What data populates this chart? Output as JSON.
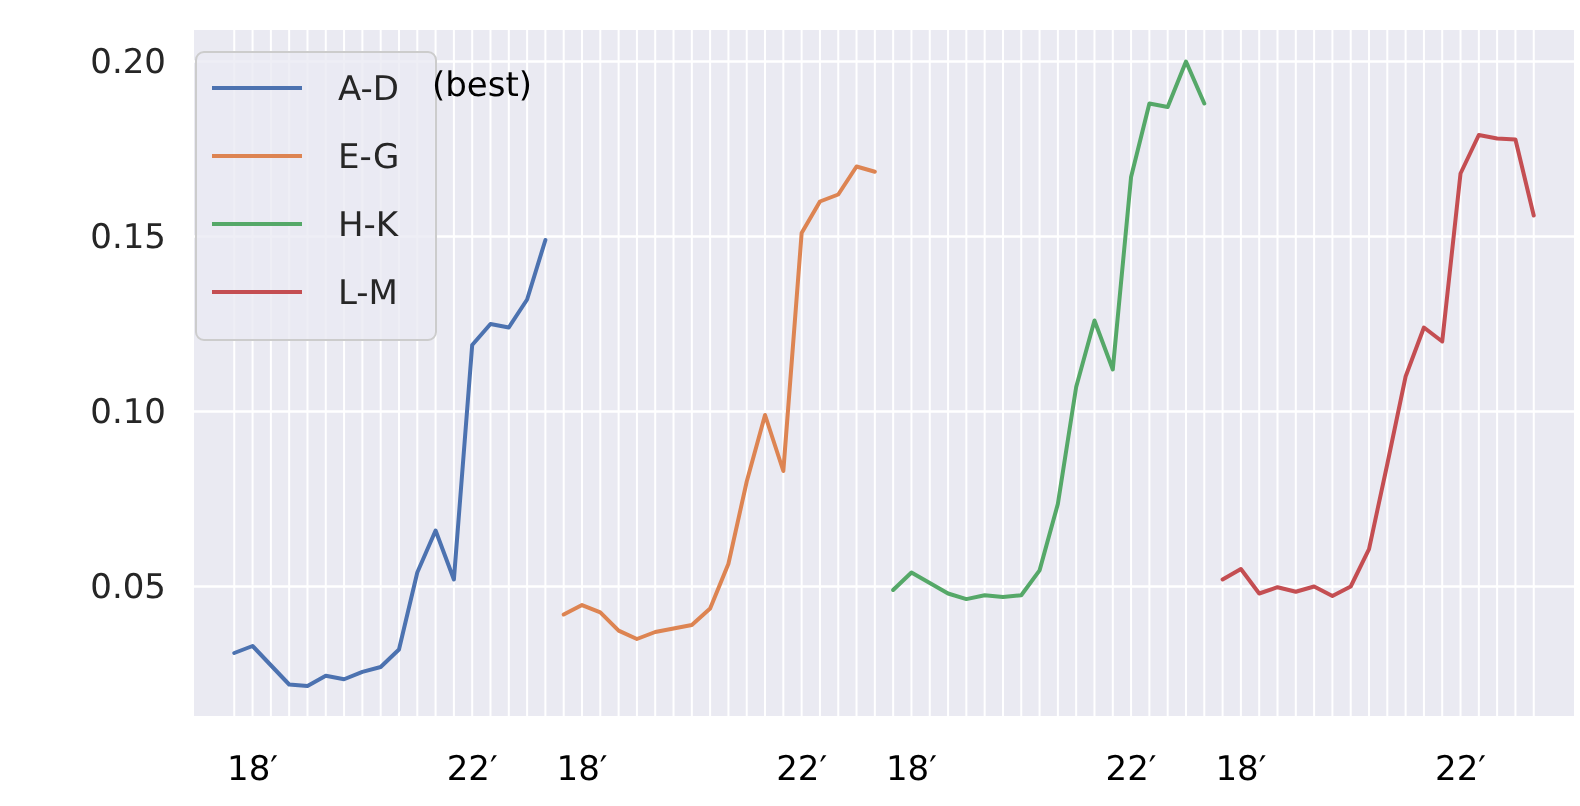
{
  "chart_data": {
    "type": "line",
    "annotations": [
      "(best)"
    ],
    "categories": [
      null,
      "18′",
      null,
      null,
      null,
      null,
      null,
      null,
      null,
      null,
      null,
      null,
      null,
      "22′",
      null,
      null,
      null,
      null,
      null,
      "18′",
      null,
      null,
      null,
      null,
      null,
      null,
      null,
      null,
      null,
      null,
      null,
      "22′",
      null,
      null,
      null,
      null,
      null,
      "18′",
      null,
      null,
      null,
      null,
      null,
      null,
      null,
      null,
      null,
      null,
      null,
      "22′",
      null,
      null,
      null,
      null,
      null,
      "18′",
      null,
      null,
      null,
      null,
      null,
      null,
      null,
      null,
      null,
      null,
      null,
      "22′",
      null,
      null,
      null,
      null
    ],
    "ylim": [
      0.013,
      0.209
    ],
    "yticks": [
      0.05,
      {
        "value": 0.1,
        "label": "0.10"
      },
      0.15,
      {
        "value": 0.2,
        "label": "0.20"
      }
    ],
    "grid": true,
    "legend": "top left",
    "series": [
      {
        "name": "A-D",
        "color": "#4c72b0",
        "values": [
          0.031,
          0.033,
          0.0275,
          0.022,
          0.0216,
          0.0245,
          0.0235,
          0.0256,
          0.027,
          0.032,
          0.054,
          0.066,
          0.052,
          0.119,
          0.125,
          0.124,
          0.132,
          0.149,
          null,
          null,
          null,
          null,
          null,
          null,
          null,
          null,
          null,
          null,
          null,
          null,
          null,
          null,
          null,
          null,
          null,
          null,
          null,
          null,
          null,
          null,
          null,
          null,
          null,
          null,
          null,
          null,
          null,
          null,
          null,
          null,
          null,
          null,
          null,
          null,
          null,
          null,
          null,
          null,
          null,
          null,
          null,
          null,
          null,
          null,
          null,
          null,
          null,
          null,
          null,
          null,
          null,
          null
        ]
      },
      {
        "name": "E-G",
        "color": "#dd8452",
        "values": [
          null,
          null,
          null,
          null,
          null,
          null,
          null,
          null,
          null,
          null,
          null,
          null,
          null,
          null,
          null,
          null,
          null,
          null,
          0.042,
          0.0447,
          0.0426,
          0.0374,
          0.035,
          0.037,
          0.038,
          0.039,
          0.0437,
          0.0565,
          0.08,
          0.099,
          0.083,
          0.151,
          0.16,
          0.162,
          0.17,
          0.1685,
          null,
          null,
          null,
          null,
          null,
          null,
          null,
          null,
          null,
          null,
          null,
          null,
          null,
          null,
          null,
          null,
          null,
          null,
          null,
          null,
          null,
          null,
          null,
          null,
          null,
          null,
          null,
          null,
          null,
          null,
          null,
          null,
          null,
          null,
          null,
          null
        ]
      },
      {
        "name": "H-K",
        "color": "#55a868",
        "values": [
          null,
          null,
          null,
          null,
          null,
          null,
          null,
          null,
          null,
          null,
          null,
          null,
          null,
          null,
          null,
          null,
          null,
          null,
          null,
          null,
          null,
          null,
          null,
          null,
          null,
          null,
          null,
          null,
          null,
          null,
          null,
          null,
          null,
          null,
          null,
          null,
          0.049,
          0.054,
          0.051,
          0.048,
          0.0464,
          0.0475,
          0.047,
          0.0475,
          0.0546,
          0.0736,
          0.107,
          0.126,
          0.112,
          0.167,
          0.188,
          0.187,
          0.2,
          0.188,
          null,
          null,
          null,
          null,
          null,
          null,
          null,
          null,
          null,
          null,
          null,
          null,
          null,
          null,
          null,
          null,
          null,
          null
        ]
      },
      {
        "name": "L-M",
        "color": "#c44e52",
        "values": [
          null,
          null,
          null,
          null,
          null,
          null,
          null,
          null,
          null,
          null,
          null,
          null,
          null,
          null,
          null,
          null,
          null,
          null,
          null,
          null,
          null,
          null,
          null,
          null,
          null,
          null,
          null,
          null,
          null,
          null,
          null,
          null,
          null,
          null,
          null,
          null,
          null,
          null,
          null,
          null,
          null,
          null,
          null,
          null,
          null,
          null,
          null,
          null,
          null,
          null,
          null,
          null,
          null,
          null,
          0.052,
          0.055,
          0.048,
          0.0498,
          0.0485,
          0.05,
          0.0473,
          0.05,
          0.0607,
          0.085,
          0.11,
          0.124,
          0.12,
          0.168,
          0.179,
          0.178,
          0.1777,
          0.156
        ]
      }
    ]
  }
}
